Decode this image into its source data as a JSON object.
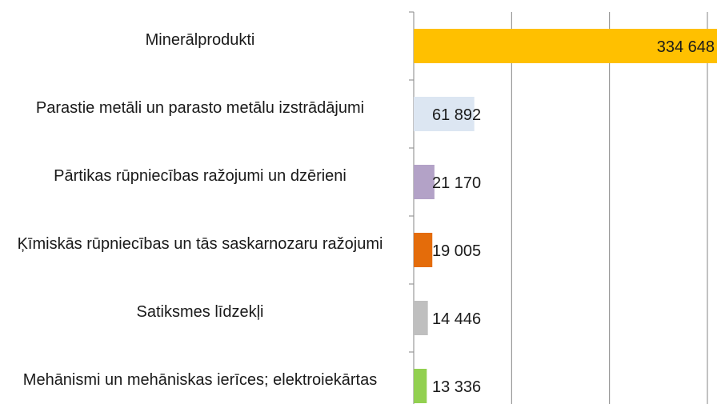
{
  "chart_data": {
    "type": "bar",
    "orientation": "horizontal",
    "categories": [
      "Minerālprodukti",
      "Parastie metāli un parasto metālu izstrādājumi",
      "Pārtikas rūpniecības ražojumi un dzērieni",
      "Ķīmiskās rūpniecības un tās saskarnozaru ražojumi",
      "Satiksmes līdzekļi",
      "Mehānismi un mehāniskas ierīces; elektroiekārtas"
    ],
    "values": [
      334648,
      61892,
      21170,
      19005,
      14446,
      13336
    ],
    "value_labels": [
      "334 648",
      "61 892",
      "21 170",
      "19 005",
      "14 446",
      "13 336"
    ],
    "colors": [
      "#ffc000",
      "#dce6f2",
      "#b3a2c7",
      "#e46c0a",
      "#bfbfbf",
      "#92d050"
    ],
    "xlim": [
      0,
      300000
    ],
    "xticks": [
      0,
      100000,
      200000,
      300000
    ],
    "grid": true
  }
}
